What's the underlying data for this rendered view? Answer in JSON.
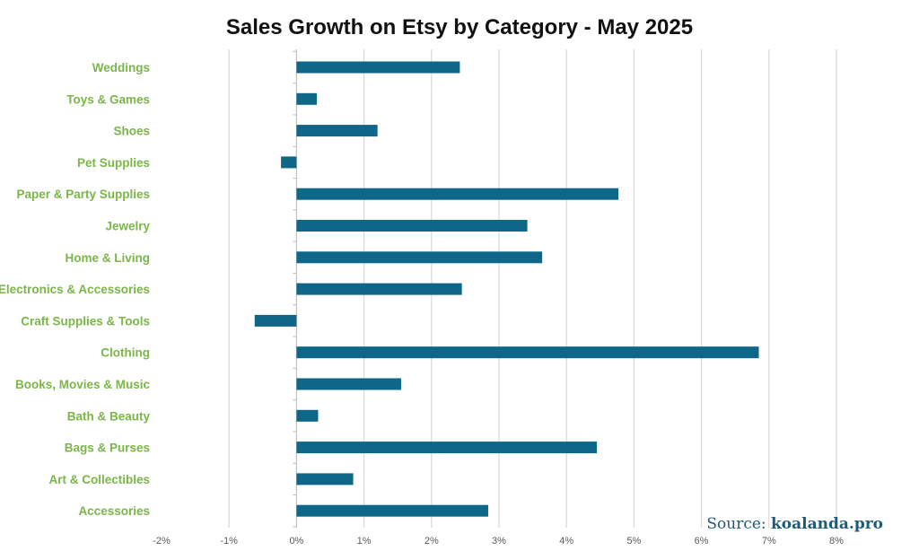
{
  "chart_data": {
    "type": "bar",
    "orientation": "horizontal",
    "title": "Sales Growth on Etsy by Category - May 2025",
    "categories": [
      "Weddings",
      "Toys & Games",
      "Shoes",
      "Pet Supplies",
      "Paper & Party Supplies",
      "Jewelry",
      "Home & Living",
      "Electronics & Accessories",
      "Craft Supplies & Tools",
      "Clothing",
      "Books, Movies & Music",
      "Bath & Beauty",
      "Bags & Purses",
      "Art & Collectibles",
      "Accessories"
    ],
    "values": [
      2.42,
      0.3,
      1.2,
      -0.23,
      4.77,
      3.42,
      3.64,
      2.45,
      -0.62,
      6.85,
      1.55,
      0.32,
      4.45,
      0.84,
      2.84
    ],
    "value_unit": "%",
    "xlim": [
      -2,
      8
    ],
    "x_ticks": [
      "-2%",
      "-1%",
      "0%",
      "1%",
      "2%",
      "3%",
      "4%",
      "5%",
      "6%",
      "7%",
      "8%"
    ],
    "x_tick_values": [
      -2,
      -1,
      0,
      1,
      2,
      3,
      4,
      5,
      6,
      7,
      8
    ],
    "xlabel": "",
    "ylabel": "",
    "grid": true,
    "legend": "none"
  },
  "source": {
    "prefix": "Source:",
    "name": "koalanda.pro"
  },
  "colors": {
    "bar": "#0e6689",
    "category_label": "#7ab648",
    "gridline": "#d9d9d9",
    "source": "#1f5a78"
  }
}
